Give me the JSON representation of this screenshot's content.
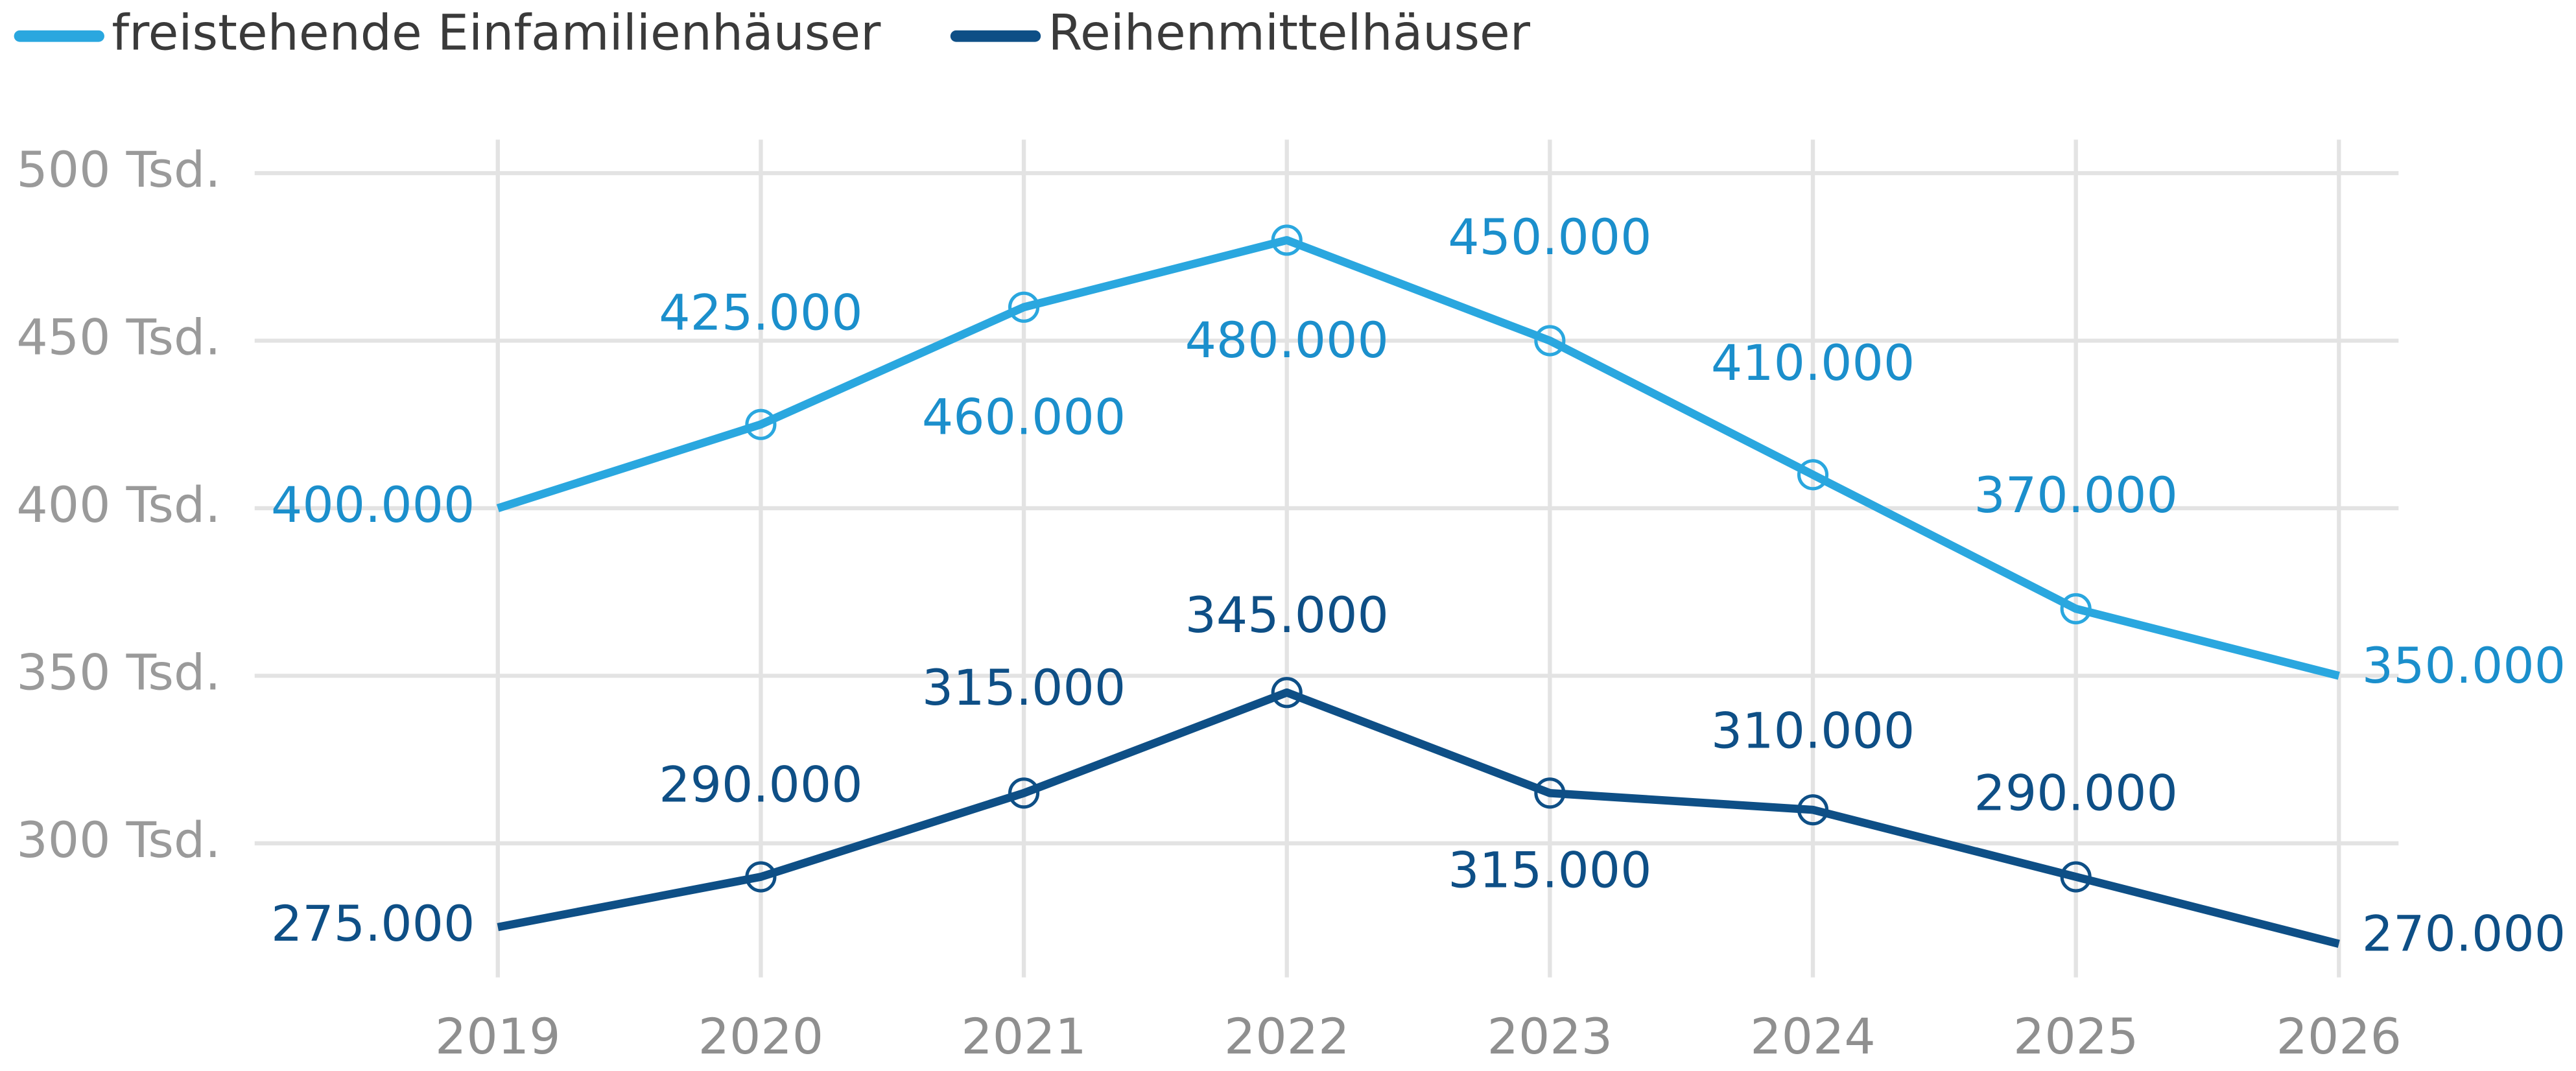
{
  "chart_data": {
    "type": "line",
    "categories": [
      "2019",
      "2020",
      "2021",
      "2022",
      "2023",
      "2024",
      "2025",
      "2026"
    ],
    "series": [
      {
        "name": "freistehende Einfamilienhäuser",
        "color": "#2aa7df",
        "label_color": "#1b8fcc",
        "values": [
          400000,
          425000,
          460000,
          480000,
          450000,
          410000,
          370000,
          350000
        ],
        "value_labels": [
          "400.000",
          "425.000",
          "460.000",
          "480.000",
          "450.000",
          "410.000",
          "370.000",
          "350.000"
        ]
      },
      {
        "name": "Reihenmittelhäuser",
        "color": "#0e4f86",
        "label_color": "#0e4f86",
        "values": [
          275000,
          290000,
          315000,
          345000,
          315000,
          310000,
          290000,
          270000
        ],
        "value_labels": [
          "275.000",
          "290.000",
          "315.000",
          "345.000",
          "315.000",
          "310.000",
          "290.000",
          "270.000"
        ]
      }
    ],
    "ylim": [
      260000,
      510000
    ],
    "yticks": [
      {
        "value": 300000,
        "label": "300 Tsd."
      },
      {
        "value": 350000,
        "label": "350 Tsd."
      },
      {
        "value": 400000,
        "label": "400 Tsd."
      },
      {
        "value": 450000,
        "label": "450 Tsd."
      },
      {
        "value": 500000,
        "label": "500 Tsd."
      }
    ],
    "grid": true,
    "legend": "top-left"
  }
}
